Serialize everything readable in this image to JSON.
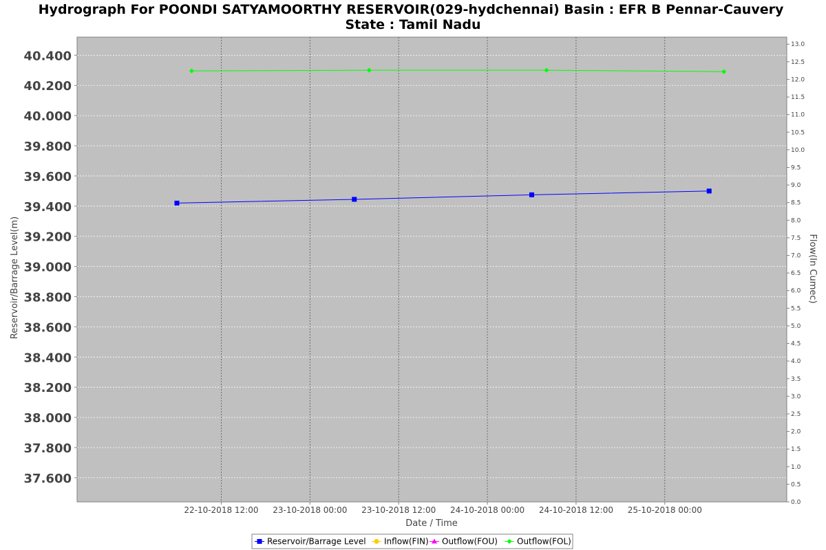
{
  "chart_data": {
    "type": "line",
    "title_line1": "Hydrograph For POONDI SATYAMOORTHY RESERVOIR(029-hydchennai) Basin : EFR B Pennar-Cauvery",
    "title_line2": "State : Tamil Nadu",
    "xlabel": "Date / Time",
    "ylabel_left": "Reservoir/Barrage Level(m)",
    "ylabel_right": "Flow(In Cumec)",
    "x_ticks": [
      "22-10-2018 12:00",
      "23-10-2018 00:00",
      "23-10-2018 12:00",
      "24-10-2018 00:00",
      "24-10-2018 12:00",
      "25-10-2018 00:00"
    ],
    "x_range_hours": [
      -7.5,
      88.5
    ],
    "left_axis": {
      "ylim": [
        37.44,
        40.52
      ],
      "ticks": [
        "37.600",
        "37.800",
        "38.000",
        "38.200",
        "38.400",
        "38.600",
        "38.800",
        "39.000",
        "39.200",
        "39.400",
        "39.600",
        "39.800",
        "40.000",
        "40.200",
        "40.400"
      ]
    },
    "right_axis": {
      "ylim": [
        0.0,
        13.2
      ],
      "ticks": [
        "0.0",
        "0.5",
        "1.0",
        "1.5",
        "2.0",
        "2.5",
        "3.0",
        "3.5",
        "4.0",
        "4.5",
        "5.0",
        "5.5",
        "6.0",
        "6.5",
        "7.0",
        "7.5",
        "8.0",
        "8.5",
        "9.0",
        "9.5",
        "10.0",
        "10.5",
        "11.0",
        "11.5",
        "12.0",
        "12.5",
        "13.0"
      ]
    },
    "grid": true,
    "legend_position": "bottom",
    "series": [
      {
        "name": "Reservoir/Barrage Level",
        "axis": "left",
        "color": "#0000ff",
        "marker": "square",
        "x": [
          "22-10-2018 06:00",
          "23-10-2018 06:00",
          "24-10-2018 06:00",
          "25-10-2018 06:00"
        ],
        "values": [
          39.42,
          39.445,
          39.475,
          39.5
        ]
      },
      {
        "name": "Inflow(FIN)",
        "axis": "right",
        "color": "#ffcc00",
        "marker": "circle",
        "x": [],
        "values": []
      },
      {
        "name": "Outflow(FOU)",
        "axis": "right",
        "color": "#ff00ff",
        "marker": "triangle",
        "x": [],
        "values": []
      },
      {
        "name": "Outflow(FOL)",
        "axis": "right",
        "color": "#00ff00",
        "marker": "diamond",
        "x": [
          "22-10-2018 08:00",
          "23-10-2018 08:00",
          "24-10-2018 08:00",
          "25-10-2018 08:00"
        ],
        "values": [
          12.24,
          12.26,
          12.26,
          12.22
        ]
      }
    ]
  }
}
